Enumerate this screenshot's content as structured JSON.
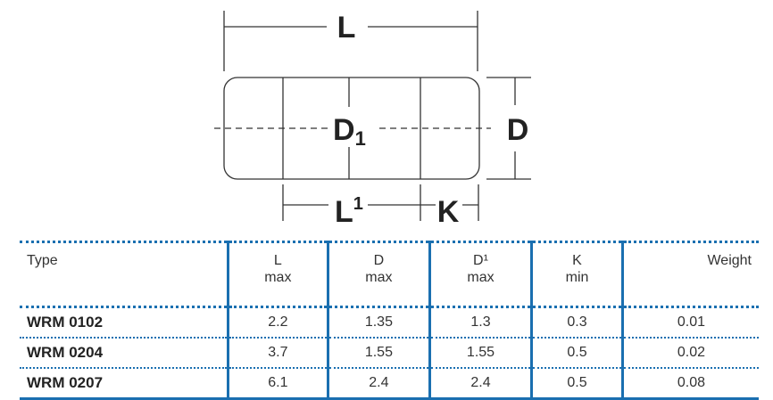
{
  "diagram": {
    "labels": {
      "L": "L",
      "D1": "D",
      "D1_sub": "1",
      "D": "D",
      "L1": "L",
      "L1_sup": "1",
      "K": "K"
    }
  },
  "table": {
    "headers": [
      {
        "line1": "Type",
        "line2": ""
      },
      {
        "line1": "L",
        "line2": "max"
      },
      {
        "line1": "D",
        "line2": "max"
      },
      {
        "line1": "D¹",
        "line2": "max"
      },
      {
        "line1": "K",
        "line2": "min"
      },
      {
        "line1": "Weight",
        "line2": ""
      }
    ],
    "rows": [
      [
        "WRM 0102",
        "2.2",
        "1.35",
        "1.3",
        "0.3",
        "0.01"
      ],
      [
        "WRM 0204",
        "3.7",
        "1.55",
        "1.55",
        "0.5",
        "0.02"
      ],
      [
        "WRM 0207",
        "6.1",
        "2.4",
        "2.4",
        "0.5",
        "0.08"
      ]
    ]
  },
  "colors": {
    "accent": "#1a6fb0"
  }
}
